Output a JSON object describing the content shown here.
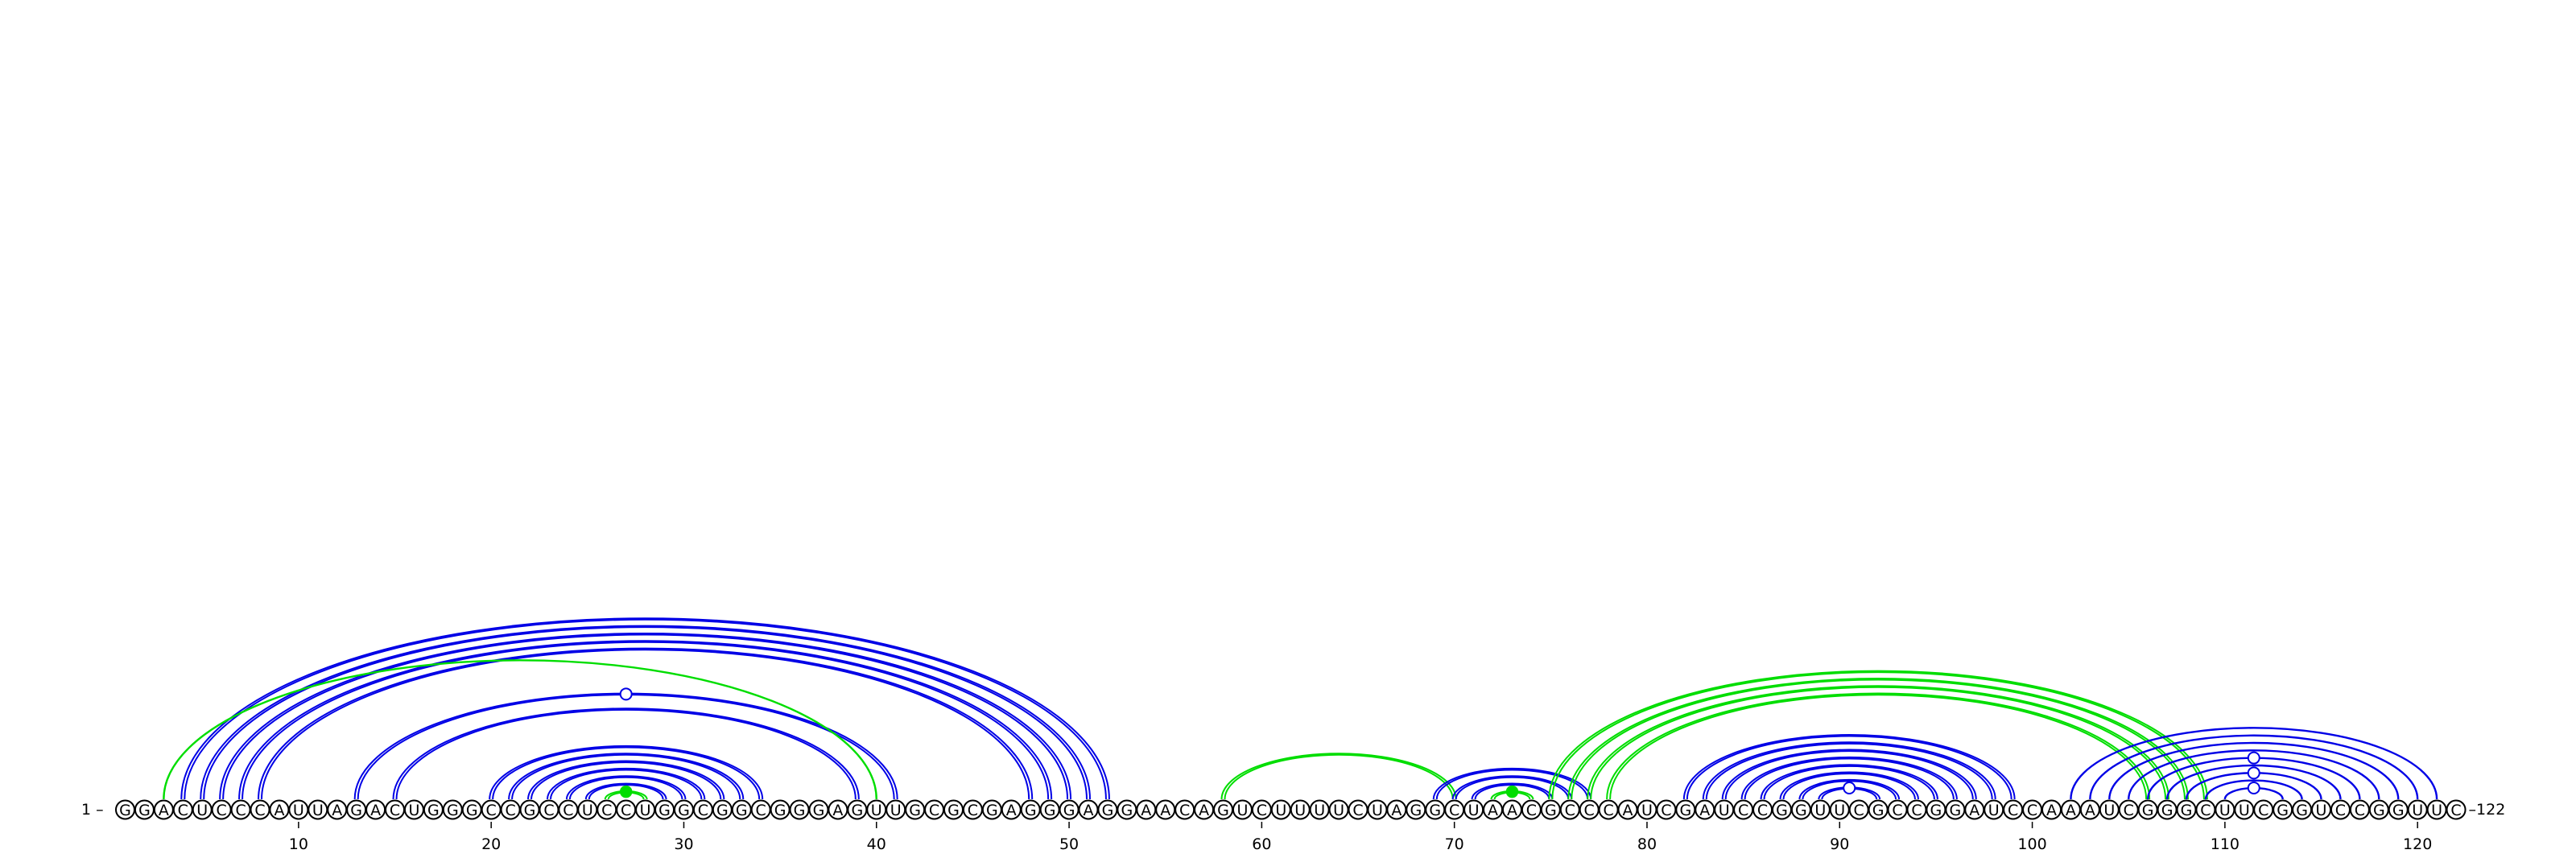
{
  "sequence": "GGACUCCCAUUAGACUGGGCCGCCUCCUGGCGGCGGGAGUUGCGCGAGGGAGGAACAGUCUUUUCUAGGCUAACGCCCAUCGAUCCGGUUCGCCGGAUCCAAAUCGGGCUUCGGUCCGGUUC",
  "start_label": "1 –",
  "end_label": "–122",
  "ticks": [
    "10",
    "20",
    "30",
    "40",
    "50",
    "60",
    "70",
    "80",
    "90",
    "100",
    "110",
    "120"
  ],
  "colors": {
    "blue": "#0000e6",
    "green": "#00dd00",
    "circle_outline": "#000000"
  },
  "arcs": [
    {
      "i": 4,
      "j": 52,
      "color": "blue",
      "style": "double"
    },
    {
      "i": 5,
      "j": 51,
      "color": "blue",
      "style": "double"
    },
    {
      "i": 6,
      "j": 50,
      "color": "blue",
      "style": "double"
    },
    {
      "i": 7,
      "j": 49,
      "color": "blue",
      "style": "double"
    },
    {
      "i": 8,
      "j": 48,
      "color": "blue",
      "style": "double"
    },
    {
      "i": 13,
      "j": 41,
      "color": "blue",
      "style": "double"
    },
    {
      "i": 15,
      "j": 39,
      "color": "blue",
      "style": "double"
    },
    {
      "i": 20,
      "j": 34,
      "color": "blue",
      "style": "double"
    },
    {
      "i": 21,
      "j": 33,
      "color": "blue",
      "style": "double"
    },
    {
      "i": 22,
      "j": 32,
      "color": "blue",
      "style": "double"
    },
    {
      "i": 23,
      "j": 31,
      "color": "blue",
      "style": "double"
    },
    {
      "i": 24,
      "j": 30,
      "color": "blue",
      "style": "double"
    },
    {
      "i": 25,
      "j": 29,
      "color": "blue",
      "style": "double"
    },
    {
      "i": 3,
      "j": 40,
      "color": "green",
      "style": "single"
    },
    {
      "i": 26,
      "j": 28,
      "color": "green",
      "style": "double"
    },
    {
      "i": 58,
      "j": 70,
      "color": "green",
      "style": "double"
    },
    {
      "i": 69,
      "j": 77,
      "color": "blue",
      "style": "double"
    },
    {
      "i": 70,
      "j": 76,
      "color": "blue",
      "style": "double"
    },
    {
      "i": 71,
      "j": 75,
      "color": "blue",
      "style": "double"
    },
    {
      "i": 72,
      "j": 74,
      "color": "green",
      "style": "double"
    },
    {
      "i": 75,
      "j": 109,
      "color": "green",
      "style": "double"
    },
    {
      "i": 76,
      "j": 108,
      "color": "green",
      "style": "double"
    },
    {
      "i": 77,
      "j": 107,
      "color": "green",
      "style": "double"
    },
    {
      "i": 78,
      "j": 106,
      "color": "green",
      "style": "double"
    },
    {
      "i": 82,
      "j": 99,
      "color": "blue",
      "style": "double"
    },
    {
      "i": 83,
      "j": 98,
      "color": "blue",
      "style": "double"
    },
    {
      "i": 84,
      "j": 97,
      "color": "blue",
      "style": "double"
    },
    {
      "i": 85,
      "j": 96,
      "color": "blue",
      "style": "double"
    },
    {
      "i": 86,
      "j": 95,
      "color": "blue",
      "style": "double"
    },
    {
      "i": 87,
      "j": 94,
      "color": "blue",
      "style": "double"
    },
    {
      "i": 88,
      "j": 93,
      "color": "blue",
      "style": "double"
    },
    {
      "i": 89,
      "j": 92,
      "color": "blue",
      "style": "double"
    },
    {
      "i": 102,
      "j": 121,
      "color": "blue",
      "style": "single"
    },
    {
      "i": 103,
      "j": 120,
      "color": "blue",
      "style": "single"
    },
    {
      "i": 104,
      "j": 119,
      "color": "blue",
      "style": "single"
    },
    {
      "i": 105,
      "j": 118,
      "color": "blue",
      "style": "single"
    },
    {
      "i": 106,
      "j": 117,
      "color": "blue",
      "style": "single"
    },
    {
      "i": 107,
      "j": 116,
      "color": "blue",
      "style": "single"
    },
    {
      "i": 108,
      "j": 115,
      "color": "blue",
      "style": "single"
    },
    {
      "i": 109,
      "j": 114,
      "color": "blue",
      "style": "single"
    },
    {
      "i": 110,
      "j": 113,
      "color": "blue",
      "style": "single"
    }
  ],
  "markers": [
    {
      "i": 26,
      "j": 28,
      "type": "filled",
      "color": "green"
    },
    {
      "i": 72,
      "j": 74,
      "type": "filled",
      "color": "green"
    },
    {
      "i": 13,
      "j": 41,
      "type": "open",
      "color": "blue"
    },
    {
      "i": 89,
      "j": 92,
      "type": "open",
      "color": "blue"
    },
    {
      "i": 110,
      "j": 113,
      "type": "open",
      "color": "blue"
    },
    {
      "i": 108,
      "j": 115,
      "type": "open",
      "color": "blue"
    },
    {
      "i": 106,
      "j": 117,
      "type": "open",
      "color": "blue"
    }
  ]
}
